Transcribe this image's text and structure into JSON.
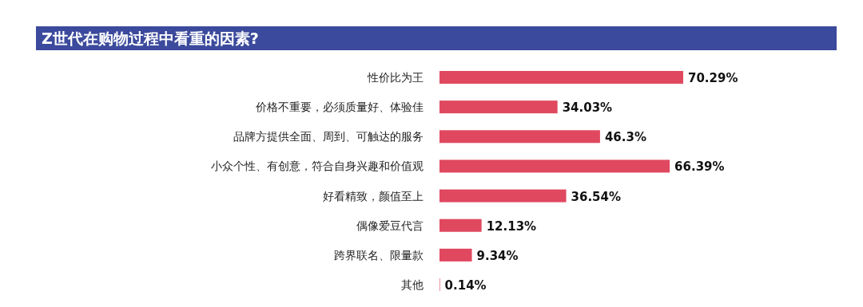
{
  "chart_data": {
    "type": "bar",
    "orientation": "horizontal",
    "title": "Z世代在购物过程中看重的因素?",
    "categories": [
      "性价比为王",
      "价格不重要，必须质量好、体验佳",
      "品牌方提供全面、周到、可触达的服务",
      "小众个性、有创意，符合自身兴趣和价值观",
      "好看精致，颜值至上",
      "偶像爱豆代言",
      "跨界联名、限量款",
      "其他"
    ],
    "values": [
      70.29,
      34.03,
      46.3,
      66.39,
      36.54,
      12.13,
      9.34,
      0.14
    ],
    "value_labels": [
      "70.29%",
      "34.03%",
      "46.3%",
      "66.39%",
      "36.54%",
      "12.13%",
      "9.34%",
      "0.14%"
    ],
    "color": "#e0485f"
  }
}
